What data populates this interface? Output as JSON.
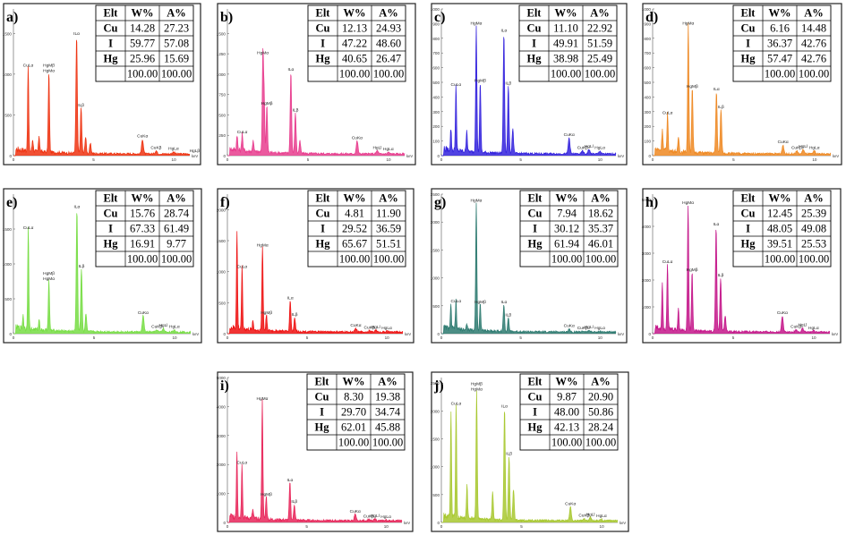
{
  "figure": {
    "x_unit": "keV",
    "table_headers": [
      "Elt",
      "W%",
      "A%"
    ],
    "element_labels": [
      "Cu",
      "I",
      "Hg"
    ],
    "total_row": [
      "",
      "100.00",
      "100.00"
    ]
  },
  "chart_data": [
    {
      "type": "line",
      "panel": "a)",
      "color": "#ee3311",
      "xlim": [
        0,
        11
      ],
      "ylim": [
        0,
        1800
      ],
      "yticks": [
        0,
        500,
        1000,
        1500
      ],
      "xticks": [
        0,
        5,
        10
      ],
      "x_unit": "keV",
      "peaks": [
        {
          "x": 0.92,
          "y": 1050,
          "label": "CuLα"
        },
        {
          "x": 2.21,
          "y": 980,
          "label": "HgMβ HgMα"
        },
        {
          "x": 3.94,
          "y": 1440,
          "label": "ILα"
        },
        {
          "x": 4.22,
          "y": 560,
          "label": "ILβ"
        },
        {
          "x": 8.05,
          "y": 180,
          "label": "CuKα"
        },
        {
          "x": 9.99,
          "y": 25,
          "label": "HgLα"
        },
        {
          "x": 8.9,
          "y": 40,
          "label": "CuKβ"
        },
        {
          "x": 11.3,
          "y": 0,
          "label": "HgLβ"
        },
        {
          "x": 1.6,
          "y": 200
        },
        {
          "x": 4.5,
          "y": 200
        },
        {
          "x": 4.8,
          "y": 120
        },
        {
          "x": 1.2,
          "y": 150
        }
      ],
      "table": [
        [
          "Cu",
          "14.28",
          "27.23"
        ],
        [
          "I",
          "59.77",
          "57.08"
        ],
        [
          "Hg",
          "25.96",
          "15.69"
        ]
      ]
    },
    {
      "type": "line",
      "panel": "b)",
      "color": "#e83d8e",
      "xlim": [
        0,
        11
      ],
      "ylim": [
        0,
        1800
      ],
      "yticks": [
        0,
        250,
        500,
        750,
        1000,
        1250,
        1500
      ],
      "xticks": [
        0,
        5,
        10
      ],
      "x_unit": "keV",
      "peaks": [
        {
          "x": 0.92,
          "y": 230,
          "label": "CuLα"
        },
        {
          "x": 2.2,
          "y": 1200,
          "label": "HgMα"
        },
        {
          "x": 2.28,
          "y": 700
        },
        {
          "x": 2.45,
          "y": 580,
          "label": "HgMβ"
        },
        {
          "x": 3.94,
          "y": 1000,
          "label": "ILα"
        },
        {
          "x": 4.22,
          "y": 500,
          "label": "ILβ"
        },
        {
          "x": 8.05,
          "y": 160,
          "label": "CuKα"
        },
        {
          "x": 9.99,
          "y": 20,
          "label": "HgLα"
        },
        {
          "x": 9.3,
          "y": 40,
          "label": "HgLl"
        },
        {
          "x": 1.6,
          "y": 150
        },
        {
          "x": 4.5,
          "y": 150
        },
        {
          "x": 0.6,
          "y": 200
        }
      ],
      "table": [
        [
          "Cu",
          "12.13",
          "24.93"
        ],
        [
          "I",
          "47.22",
          "48.60"
        ],
        [
          "Hg",
          "40.65",
          "26.47"
        ]
      ]
    },
    {
      "type": "line",
      "panel": "c)",
      "color": "#3322dd",
      "xlim": [
        0,
        11
      ],
      "ylim": [
        0,
        1000
      ],
      "yticks": [
        0,
        100,
        200,
        300,
        400,
        500,
        600,
        700,
        800,
        900,
        1000
      ],
      "xticks": [
        0,
        5,
        10
      ],
      "x_unit": "keV",
      "peaks": [
        {
          "x": 0.92,
          "y": 450,
          "label": "CuLα"
        },
        {
          "x": 2.2,
          "y": 870,
          "label": "HgMα"
        },
        {
          "x": 2.45,
          "y": 480,
          "label": "HgMβ"
        },
        {
          "x": 3.94,
          "y": 820,
          "label": "ILα"
        },
        {
          "x": 4.22,
          "y": 460,
          "label": "ILβ"
        },
        {
          "x": 8.05,
          "y": 110,
          "label": "CuKα"
        },
        {
          "x": 9.99,
          "y": 20,
          "label": "HgLα"
        },
        {
          "x": 9.3,
          "y": 30,
          "label": "HgLl"
        },
        {
          "x": 8.9,
          "y": 20,
          "label": "CuKβ"
        },
        {
          "x": 1.6,
          "y": 150
        },
        {
          "x": 4.5,
          "y": 170
        },
        {
          "x": 0.6,
          "y": 150
        }
      ],
      "table": [
        [
          "Cu",
          "11.10",
          "22.92"
        ],
        [
          "I",
          "49.91",
          "51.59"
        ],
        [
          "Hg",
          "38.98",
          "25.49"
        ]
      ]
    },
    {
      "type": "line",
      "panel": "d)",
      "color": "#ee8822",
      "xlim": [
        0,
        11
      ],
      "ylim": [
        0,
        1000
      ],
      "yticks": [
        0,
        100,
        200,
        300,
        400,
        500,
        600,
        700,
        800,
        900,
        1000
      ],
      "xticks": [
        0,
        5,
        10
      ],
      "x_unit": "keV",
      "peaks": [
        {
          "x": 0.92,
          "y": 260,
          "label": "CuLα"
        },
        {
          "x": 2.2,
          "y": 870,
          "label": "HgMα"
        },
        {
          "x": 2.45,
          "y": 440,
          "label": "HgMβ"
        },
        {
          "x": 3.94,
          "y": 420,
          "label": "ILα"
        },
        {
          "x": 4.22,
          "y": 300,
          "label": "ILβ"
        },
        {
          "x": 8.05,
          "y": 60,
          "label": "CuKα"
        },
        {
          "x": 9.99,
          "y": 20,
          "label": "HgLα"
        },
        {
          "x": 9.3,
          "y": 30,
          "label": "HgLl"
        },
        {
          "x": 8.9,
          "y": 20,
          "label": "CuKβ"
        },
        {
          "x": 0.6,
          "y": 150
        },
        {
          "x": 1.6,
          "y": 100
        }
      ],
      "table": [
        [
          "Cu",
          "6.16",
          "14.48"
        ],
        [
          "I",
          "36.37",
          "42.76"
        ],
        [
          "Hg",
          "57.47",
          "42.76"
        ]
      ]
    },
    {
      "type": "line",
      "panel": "e)",
      "color": "#77dd44",
      "xlim": [
        0,
        11
      ],
      "ylim": [
        0,
        2000
      ],
      "yticks": [
        0,
        500,
        1000,
        1500
      ],
      "xticks": [
        0,
        5,
        10
      ],
      "x_unit": "keV",
      "peaks": [
        {
          "x": 0.92,
          "y": 1450,
          "label": "CuLα"
        },
        {
          "x": 2.2,
          "y": 720,
          "label": "HgMβ HgMα"
        },
        {
          "x": 3.94,
          "y": 1750,
          "label": "ILα"
        },
        {
          "x": 4.22,
          "y": 900,
          "label": "ILβ"
        },
        {
          "x": 8.05,
          "y": 230,
          "label": "CuKα"
        },
        {
          "x": 9.99,
          "y": 30,
          "label": "HgLα"
        },
        {
          "x": 9.3,
          "y": 50,
          "label": "HgLl"
        },
        {
          "x": 8.9,
          "y": 30,
          "label": "CuKβ"
        },
        {
          "x": 0.6,
          "y": 200
        },
        {
          "x": 1.6,
          "y": 150
        },
        {
          "x": 4.5,
          "y": 250
        }
      ],
      "table": [
        [
          "Cu",
          "15.76",
          "28.74"
        ],
        [
          "I",
          "67.33",
          "61.49"
        ],
        [
          "Hg",
          "16.91",
          "9.77"
        ]
      ]
    },
    {
      "type": "line",
      "panel": "f)",
      "color": "#ee1111",
      "xlim": [
        0,
        11
      ],
      "ylim": [
        0,
        2250
      ],
      "yticks": [
        0,
        500,
        1000,
        1500,
        2000
      ],
      "xticks": [
        0,
        5,
        10
      ],
      "x_unit": "keV",
      "peaks": [
        {
          "x": 0.6,
          "y": 1550
        },
        {
          "x": 0.92,
          "y": 1000,
          "label": "CuLα"
        },
        {
          "x": 2.2,
          "y": 1350,
          "label": "HgMα"
        },
        {
          "x": 2.45,
          "y": 260,
          "label": "HgMβ"
        },
        {
          "x": 3.94,
          "y": 500,
          "label": "ILα"
        },
        {
          "x": 4.22,
          "y": 230,
          "label": "ILβ"
        },
        {
          "x": 8.05,
          "y": 60,
          "label": "CuKα"
        },
        {
          "x": 9.99,
          "y": 15,
          "label": "HgLα"
        },
        {
          "x": 9.3,
          "y": 30,
          "label": "HgLl"
        },
        {
          "x": 8.9,
          "y": 20,
          "label": "CuKβ"
        },
        {
          "x": 1.6,
          "y": 150
        }
      ],
      "table": [
        [
          "Cu",
          "4.81",
          "11.90"
        ],
        [
          "I",
          "29.52",
          "36.59"
        ],
        [
          "Hg",
          "65.67",
          "51.51"
        ]
      ]
    },
    {
      "type": "line",
      "panel": "g)",
      "color": "#2d7a70",
      "xlim": [
        0,
        11
      ],
      "ylim": [
        0,
        2500
      ],
      "yticks": [
        0,
        500,
        1000,
        1500,
        2000,
        2500
      ],
      "xticks": [
        0,
        5,
        10
      ],
      "x_unit": "keV",
      "peaks": [
        {
          "x": 0.92,
          "y": 500,
          "label": "CuLα"
        },
        {
          "x": 0.6,
          "y": 400
        },
        {
          "x": 2.2,
          "y": 2300,
          "label": "HgMα"
        },
        {
          "x": 2.45,
          "y": 480,
          "label": "HgMβ"
        },
        {
          "x": 3.94,
          "y": 480,
          "label": "ILα"
        },
        {
          "x": 4.22,
          "y": 250,
          "label": "ILβ"
        },
        {
          "x": 8.05,
          "y": 60,
          "label": "CuKα"
        },
        {
          "x": 9.99,
          "y": 15,
          "label": "HgLα"
        },
        {
          "x": 9.3,
          "y": 30,
          "label": "HgLl"
        },
        {
          "x": 8.9,
          "y": 20,
          "label": "CuKβ"
        },
        {
          "x": 1.6,
          "y": 100
        }
      ],
      "table": [
        [
          "Cu",
          "7.94",
          "18.62"
        ],
        [
          "I",
          "30.12",
          "35.37"
        ],
        [
          "Hg",
          "61.94",
          "46.01"
        ]
      ]
    },
    {
      "type": "line",
      "panel": "h)",
      "color": "#c4168a",
      "xlim": [
        0,
        11
      ],
      "ylim": [
        0,
        5200
      ],
      "yticks": [
        0,
        1000,
        2000,
        3000,
        4000,
        5000
      ],
      "xticks": [
        0,
        5,
        10
      ],
      "x_unit": "keV",
      "peaks": [
        {
          "x": 0.92,
          "y": 2500,
          "label": "CuLα"
        },
        {
          "x": 0.6,
          "y": 1800
        },
        {
          "x": 2.2,
          "y": 4700,
          "label": "HgMα"
        },
        {
          "x": 2.45,
          "y": 2200,
          "label": "HgMβ"
        },
        {
          "x": 3.94,
          "y": 3900,
          "label": "ILα"
        },
        {
          "x": 4.22,
          "y": 2000,
          "label": "ILβ"
        },
        {
          "x": 8.05,
          "y": 600,
          "label": "CuKα"
        },
        {
          "x": 9.99,
          "y": 40,
          "label": "HgLα"
        },
        {
          "x": 9.3,
          "y": 150,
          "label": "HgLl"
        },
        {
          "x": 8.9,
          "y": 80,
          "label": "CuKβ"
        },
        {
          "x": 1.6,
          "y": 800
        },
        {
          "x": 4.5,
          "y": 600
        }
      ],
      "table": [
        [
          "Cu",
          "12.45",
          "25.39"
        ],
        [
          "I",
          "48.05",
          "49.08"
        ],
        [
          "Hg",
          "39.51",
          "25.53"
        ]
      ]
    },
    {
      "type": "line",
      "panel": "i)",
      "color": "#e8265a",
      "xlim": [
        0,
        11
      ],
      "ylim": [
        0,
        5000
      ],
      "yticks": [
        0,
        1000,
        2000,
        3000,
        4000,
        5000
      ],
      "xticks": [
        0,
        5,
        10
      ],
      "x_unit": "keV",
      "peaks": [
        {
          "x": 0.6,
          "y": 2300
        },
        {
          "x": 0.92,
          "y": 1900,
          "label": "CuLα"
        },
        {
          "x": 2.2,
          "y": 4100,
          "label": "HgMα"
        },
        {
          "x": 2.45,
          "y": 800,
          "label": "HgMβ"
        },
        {
          "x": 3.94,
          "y": 1300,
          "label": "ILα"
        },
        {
          "x": 4.22,
          "y": 550,
          "label": "ILβ"
        },
        {
          "x": 8.05,
          "y": 220,
          "label": "CuKα"
        },
        {
          "x": 9.99,
          "y": 30,
          "label": "HgLα"
        },
        {
          "x": 9.3,
          "y": 60,
          "label": "HgLl"
        },
        {
          "x": 8.9,
          "y": 40,
          "label": "CuKβ"
        },
        {
          "x": 1.6,
          "y": 300
        }
      ],
      "table": [
        [
          "Cu",
          "8.30",
          "19.38"
        ],
        [
          "I",
          "29.70",
          "34.74"
        ],
        [
          "Hg",
          "62.01",
          "45.88"
        ]
      ]
    },
    {
      "type": "line",
      "panel": "j)",
      "color": "#a8c830",
      "xlim": [
        0,
        11
      ],
      "ylim": [
        0,
        2600
      ],
      "yticks": [
        0,
        500,
        1000,
        1500,
        2000,
        2500
      ],
      "xticks": [
        0,
        5,
        10
      ],
      "x_unit": "keV",
      "peaks": [
        {
          "x": 0.92,
          "y": 2050,
          "label": "CuLα"
        },
        {
          "x": 0.6,
          "y": 1900
        },
        {
          "x": 2.2,
          "y": 2300,
          "label": "HgMβ HgMα"
        },
        {
          "x": 3.94,
          "y": 2000,
          "label": "ILα"
        },
        {
          "x": 4.22,
          "y": 1150,
          "label": "ILβ"
        },
        {
          "x": 8.05,
          "y": 250,
          "label": "CuKα"
        },
        {
          "x": 9.99,
          "y": 30,
          "label": "HgLα"
        },
        {
          "x": 9.3,
          "y": 60,
          "label": "HgLl"
        },
        {
          "x": 8.9,
          "y": 40,
          "label": "CuKβ"
        },
        {
          "x": 1.6,
          "y": 600
        },
        {
          "x": 4.5,
          "y": 550
        },
        {
          "x": 3.2,
          "y": 500
        }
      ],
      "table": [
        [
          "Cu",
          "9.87",
          "20.90"
        ],
        [
          "I",
          "48.00",
          "50.86"
        ],
        [
          "Hg",
          "42.13",
          "28.24"
        ]
      ]
    }
  ]
}
